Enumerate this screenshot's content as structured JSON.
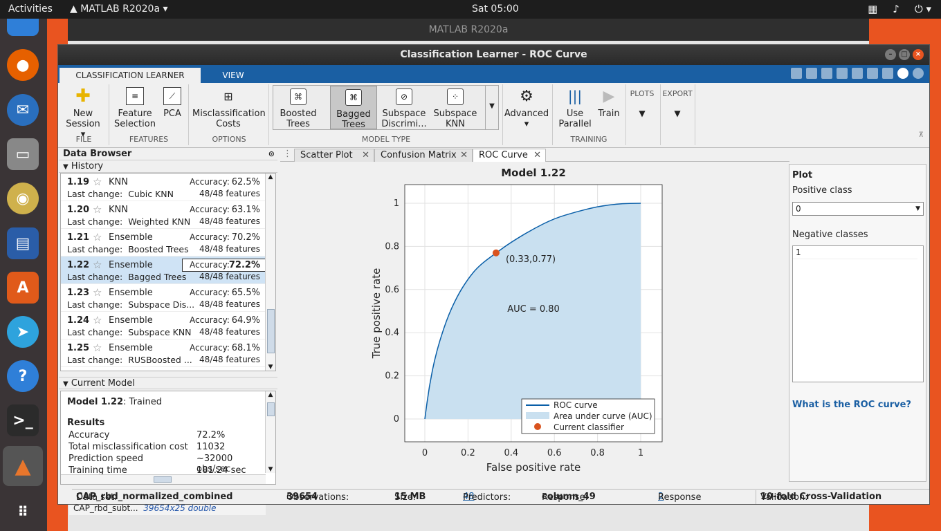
{
  "topbar": {
    "activities": "Activities",
    "app": "MATLAB R2020a",
    "clock": "Sat 05:00"
  },
  "bg_window": {
    "title": "MATLAB R2020a",
    "workspace_name": "CAP_rbd_subt...",
    "workspace_value": "39654x25 double"
  },
  "window": {
    "title": "Classification Learner - ROC Curve"
  },
  "ribbon": {
    "tabs": [
      "CLASSIFICATION LEARNER",
      "VIEW"
    ],
    "new_session": "New\nSession",
    "feature_selection": "Feature\nSelection",
    "pca": "PCA",
    "misclassification": "Misclassification\nCosts",
    "models": [
      "Boosted\nTrees",
      "Bagged\nTrees",
      "Subspace\nDiscrimi...",
      "Subspace\nKNN"
    ],
    "advanced": "Advanced",
    "use_parallel": "Use\nParallel",
    "train": "Train",
    "plots": "PLOTS",
    "export": "EXPORT",
    "sections": [
      "FILE",
      "FEATURES",
      "OPTIONS",
      "MODEL TYPE",
      "TRAINING"
    ]
  },
  "data_browser": {
    "title": "Data Browser",
    "history_label": "History",
    "current_model_label": "Current Model"
  },
  "history": [
    {
      "num": "1.19",
      "type": "KNN",
      "acc_label": "Accuracy:",
      "acc": "62.5%",
      "last_label": "Last change:",
      "last": "Cubic KNN",
      "features": "48/48 features"
    },
    {
      "num": "1.20",
      "type": "KNN",
      "acc_label": "Accuracy:",
      "acc": "63.1%",
      "last_label": "Last change:",
      "last": "Weighted KNN",
      "features": "48/48 features"
    },
    {
      "num": "1.21",
      "type": "Ensemble",
      "acc_label": "Accuracy:",
      "acc": "70.2%",
      "last_label": "Last change:",
      "last": "Boosted Trees",
      "features": "48/48 features"
    },
    {
      "num": "1.22",
      "type": "Ensemble",
      "acc_label": "Accuracy:",
      "acc": "72.2%",
      "last_label": "Last change:",
      "last": "Bagged Trees",
      "features": "48/48 features"
    },
    {
      "num": "1.23",
      "type": "Ensemble",
      "acc_label": "Accuracy:",
      "acc": "65.5%",
      "last_label": "Last change:",
      "last": "Subspace Dis...",
      "features": "48/48 features"
    },
    {
      "num": "1.24",
      "type": "Ensemble",
      "acc_label": "Accuracy:",
      "acc": "64.9%",
      "last_label": "Last change:",
      "last": "Subspace KNN",
      "features": "48/48 features"
    },
    {
      "num": "1.25",
      "type": "Ensemble",
      "acc_label": "Accuracy:",
      "acc": "68.1%",
      "last_label": "Last change:",
      "last": "RUSBoosted ...",
      "features": "48/48 features"
    }
  ],
  "current_model": {
    "name": "Model 1.22",
    "state": ": Trained",
    "results_label": "Results",
    "rows": [
      {
        "k": "Accuracy",
        "v": "72.2%"
      },
      {
        "k": "Total misclassification cost",
        "v": "11032"
      },
      {
        "k": "Prediction speed",
        "v": "~32000 obs/sec"
      },
      {
        "k": "Training time",
        "v": "181.24 sec"
      }
    ]
  },
  "doc_tabs": [
    "Scatter Plot",
    "Confusion Matrix",
    "ROC Curve"
  ],
  "chart_data": {
    "type": "line",
    "title": "Model 1.22",
    "xlabel": "False positive rate",
    "ylabel": "True positive rate",
    "xlim": [
      0,
      1
    ],
    "ylim": [
      0,
      1
    ],
    "xticks": [
      "0",
      "0.2",
      "0.4",
      "0.6",
      "0.8",
      "1"
    ],
    "yticks": [
      "0",
      "0.2",
      "0.4",
      "0.6",
      "0.8",
      "1"
    ],
    "grid": true,
    "series": [
      {
        "name": "ROC curve",
        "x": [
          0,
          0.02,
          0.05,
          0.1,
          0.15,
          0.2,
          0.25,
          0.33,
          0.4,
          0.5,
          0.6,
          0.7,
          0.8,
          0.9,
          1
        ],
        "y": [
          0,
          0.15,
          0.3,
          0.46,
          0.57,
          0.65,
          0.71,
          0.77,
          0.82,
          0.88,
          0.93,
          0.96,
          0.985,
          0.998,
          1
        ]
      },
      {
        "name": "Area under curve (AUC)"
      },
      {
        "name": "Current classifier",
        "x": [
          0.33
        ],
        "y": [
          0.77
        ]
      }
    ],
    "point_label": "(0.33,0.77)",
    "auc_label": "AUC = 0.80",
    "legend": "bottom-right"
  },
  "plot_options": {
    "title": "Plot",
    "positive_label": "Positive class",
    "positive_value": "0",
    "negative_label": "Negative classes",
    "negative_value": "1",
    "help_link": "What is the ROC curve?"
  },
  "status": {
    "dataset_label": "Data set:",
    "dataset": "CAP_rbd_normalized_combined",
    "obs_label": "Observations:",
    "obs": "39654",
    "size_label": "Size:",
    "size": "15 MB",
    "pred_label": "Predictors:",
    "pred": "48",
    "resp_label": "Response:",
    "resp": "column_49",
    "classes_label": "Response Classes:",
    "classes": "2",
    "val_label": "Validation:",
    "val": "10-fold Cross-Validation"
  },
  "colors": {
    "roc_line": "#0a5fa8",
    "auc_fill": "#c9e0f0",
    "point": "#d9531e",
    "accent": "#1a5fa3"
  }
}
